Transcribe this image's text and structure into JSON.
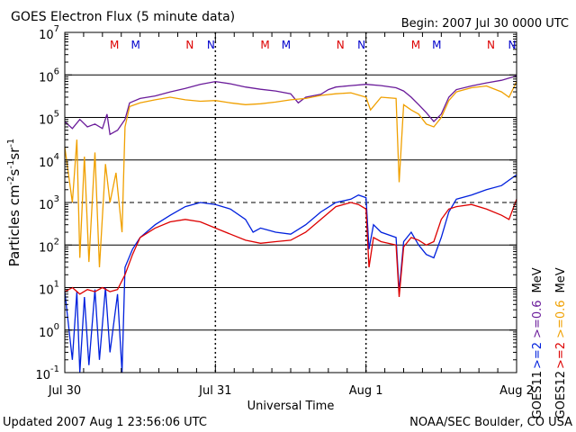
{
  "header": {
    "title": "GOES Electron Flux (5 minute data)",
    "begin": "Begin: 2007 Jul 30 0000 UTC"
  },
  "footer": {
    "updated": "Updated 2007 Aug  1 23:56:06 UTC",
    "credit": "NOAA/SEC Boulder, CO USA"
  },
  "axes": {
    "xlabel": "Universal Time",
    "ylabel_base": "Particles cm",
    "ylabel_sup1": "-2",
    "ylabel_mid1": "s",
    "ylabel_sup2": "-1",
    "ylabel_mid2": "sr",
    "ylabel_sup3": "-1"
  },
  "legend": {
    "unit": "MeV",
    "goes11_label": "GOES11",
    "goes12_label": "GOES12",
    "g11_high": ">=0.6",
    "g11_low": ">=2",
    "g12_high": ">=0.6",
    "g12_low": ">=2"
  },
  "markers": {
    "items": [
      {
        "day": 0.33,
        "label": "M",
        "color": "#dd0000"
      },
      {
        "day": 0.47,
        "label": "M",
        "color": "#0000cc"
      },
      {
        "day": 0.83,
        "label": "N",
        "color": "#dd0000"
      },
      {
        "day": 0.97,
        "label": "N",
        "color": "#0000cc"
      },
      {
        "day": 1.33,
        "label": "M",
        "color": "#dd0000"
      },
      {
        "day": 1.47,
        "label": "M",
        "color": "#0000cc"
      },
      {
        "day": 1.83,
        "label": "N",
        "color": "#dd0000"
      },
      {
        "day": 1.97,
        "label": "N",
        "color": "#0000cc"
      },
      {
        "day": 2.33,
        "label": "M",
        "color": "#dd0000"
      },
      {
        "day": 2.47,
        "label": "M",
        "color": "#0000cc"
      },
      {
        "day": 2.83,
        "label": "N",
        "color": "#dd0000"
      },
      {
        "day": 2.97,
        "label": "N",
        "color": "#0000cc"
      }
    ]
  },
  "chart_data": {
    "type": "line",
    "title": "GOES Electron Flux (5 minute data)",
    "xlabel": "Universal Time",
    "ylabel": "Particles cm-2 s-1 sr-1",
    "yscale": "log",
    "ylim": [
      0.1,
      10000000
    ],
    "xlim_days": [
      0,
      3
    ],
    "x_tick_labels": [
      "Jul 30",
      "Jul 31",
      "Aug 1",
      "Aug 2"
    ],
    "y_tick_labels": [
      {
        "base": "10",
        "exp": "-1"
      },
      {
        "base": "10",
        "exp": "0"
      },
      {
        "base": "10",
        "exp": "1"
      },
      {
        "base": "10",
        "exp": "2"
      },
      {
        "base": "10",
        "exp": "3"
      },
      {
        "base": "10",
        "exp": "4"
      },
      {
        "base": "10",
        "exp": "5"
      },
      {
        "base": "10",
        "exp": "6"
      },
      {
        "base": "10",
        "exp": "7"
      }
    ],
    "grid": "horizontal at each decade, dashed at 1000",
    "series": [
      {
        "name": "GOES11 >=0.6 MeV",
        "color": "#6a1b9a",
        "points": [
          [
            0,
            80000
          ],
          [
            0.05,
            55000
          ],
          [
            0.1,
            90000
          ],
          [
            0.15,
            60000
          ],
          [
            0.2,
            70000
          ],
          [
            0.25,
            55000
          ],
          [
            0.28,
            120000
          ],
          [
            0.3,
            40000
          ],
          [
            0.35,
            50000
          ],
          [
            0.4,
            90000
          ],
          [
            0.43,
            220000
          ],
          [
            0.5,
            280000
          ],
          [
            0.6,
            320000
          ],
          [
            0.7,
            400000
          ],
          [
            0.8,
            480000
          ],
          [
            0.9,
            600000
          ],
          [
            1.0,
            700000
          ],
          [
            1.1,
            620000
          ],
          [
            1.2,
            520000
          ],
          [
            1.3,
            460000
          ],
          [
            1.4,
            420000
          ],
          [
            1.5,
            360000
          ],
          [
            1.55,
            220000
          ],
          [
            1.6,
            300000
          ],
          [
            1.7,
            350000
          ],
          [
            1.75,
            450000
          ],
          [
            1.8,
            520000
          ],
          [
            1.9,
            560000
          ],
          [
            2.0,
            600000
          ],
          [
            2.1,
            560000
          ],
          [
            2.2,
            500000
          ],
          [
            2.25,
            420000
          ],
          [
            2.3,
            300000
          ],
          [
            2.35,
            200000
          ],
          [
            2.4,
            130000
          ],
          [
            2.45,
            80000
          ],
          [
            2.5,
            120000
          ],
          [
            2.55,
            300000
          ],
          [
            2.6,
            450000
          ],
          [
            2.7,
            550000
          ],
          [
            2.8,
            650000
          ],
          [
            2.9,
            750000
          ],
          [
            3.0,
            950000
          ]
        ]
      },
      {
        "name": "GOES12 >=0.6 MeV",
        "color": "#f0a000",
        "points": [
          [
            0,
            20000
          ],
          [
            0.05,
            1000
          ],
          [
            0.08,
            30000
          ],
          [
            0.1,
            50
          ],
          [
            0.13,
            12000
          ],
          [
            0.16,
            40
          ],
          [
            0.2,
            15000
          ],
          [
            0.23,
            30
          ],
          [
            0.27,
            8000
          ],
          [
            0.3,
            1000
          ],
          [
            0.34,
            5000
          ],
          [
            0.38,
            200
          ],
          [
            0.4,
            60000
          ],
          [
            0.43,
            180000
          ],
          [
            0.5,
            220000
          ],
          [
            0.6,
            260000
          ],
          [
            0.7,
            300000
          ],
          [
            0.8,
            260000
          ],
          [
            0.9,
            240000
          ],
          [
            1.0,
            250000
          ],
          [
            1.1,
            220000
          ],
          [
            1.2,
            200000
          ],
          [
            1.3,
            210000
          ],
          [
            1.4,
            230000
          ],
          [
            1.5,
            260000
          ],
          [
            1.6,
            280000
          ],
          [
            1.7,
            330000
          ],
          [
            1.8,
            360000
          ],
          [
            1.9,
            380000
          ],
          [
            2.0,
            300000
          ],
          [
            2.03,
            150000
          ],
          [
            2.1,
            300000
          ],
          [
            2.2,
            280000
          ],
          [
            2.22,
            3000
          ],
          [
            2.25,
            200000
          ],
          [
            2.3,
            150000
          ],
          [
            2.35,
            120000
          ],
          [
            2.4,
            70000
          ],
          [
            2.45,
            60000
          ],
          [
            2.5,
            100000
          ],
          [
            2.55,
            250000
          ],
          [
            2.6,
            400000
          ],
          [
            2.7,
            500000
          ],
          [
            2.8,
            550000
          ],
          [
            2.9,
            400000
          ],
          [
            2.95,
            300000
          ],
          [
            3.0,
            700000
          ]
        ]
      },
      {
        "name": "GOES11 >=2 MeV",
        "color": "#0020dd",
        "points": [
          [
            0,
            8
          ],
          [
            0.05,
            0.2
          ],
          [
            0.08,
            8
          ],
          [
            0.1,
            0.1
          ],
          [
            0.13,
            6
          ],
          [
            0.16,
            0.15
          ],
          [
            0.2,
            9
          ],
          [
            0.23,
            0.2
          ],
          [
            0.27,
            10
          ],
          [
            0.3,
            0.3
          ],
          [
            0.35,
            7
          ],
          [
            0.38,
            0.1
          ],
          [
            0.4,
            30
          ],
          [
            0.45,
            80
          ],
          [
            0.5,
            150
          ],
          [
            0.6,
            300
          ],
          [
            0.7,
            500
          ],
          [
            0.8,
            800
          ],
          [
            0.9,
            1000
          ],
          [
            1.0,
            900
          ],
          [
            1.1,
            700
          ],
          [
            1.2,
            400
          ],
          [
            1.25,
            200
          ],
          [
            1.3,
            250
          ],
          [
            1.4,
            200
          ],
          [
            1.5,
            180
          ],
          [
            1.6,
            300
          ],
          [
            1.7,
            600
          ],
          [
            1.8,
            1000
          ],
          [
            1.9,
            1200
          ],
          [
            1.95,
            1500
          ],
          [
            2.0,
            1300
          ],
          [
            2.02,
            80
          ],
          [
            2.05,
            300
          ],
          [
            2.1,
            200
          ],
          [
            2.2,
            150
          ],
          [
            2.22,
            8
          ],
          [
            2.25,
            120
          ],
          [
            2.3,
            200
          ],
          [
            2.35,
            100
          ],
          [
            2.4,
            60
          ],
          [
            2.45,
            50
          ],
          [
            2.5,
            150
          ],
          [
            2.55,
            600
          ],
          [
            2.6,
            1200
          ],
          [
            2.7,
            1500
          ],
          [
            2.8,
            2000
          ],
          [
            2.9,
            2500
          ],
          [
            3.0,
            4500
          ]
        ]
      },
      {
        "name": "GOES12 >=2 MeV",
        "color": "#dd0000",
        "points": [
          [
            0,
            8
          ],
          [
            0.05,
            10
          ],
          [
            0.1,
            7
          ],
          [
            0.15,
            9
          ],
          [
            0.2,
            8
          ],
          [
            0.25,
            10
          ],
          [
            0.3,
            8
          ],
          [
            0.35,
            9
          ],
          [
            0.4,
            20
          ],
          [
            0.45,
            60
          ],
          [
            0.5,
            150
          ],
          [
            0.6,
            250
          ],
          [
            0.7,
            350
          ],
          [
            0.8,
            400
          ],
          [
            0.9,
            350
          ],
          [
            1.0,
            250
          ],
          [
            1.1,
            180
          ],
          [
            1.2,
            130
          ],
          [
            1.3,
            110
          ],
          [
            1.4,
            120
          ],
          [
            1.5,
            130
          ],
          [
            1.6,
            200
          ],
          [
            1.7,
            400
          ],
          [
            1.8,
            800
          ],
          [
            1.9,
            1000
          ],
          [
            1.95,
            900
          ],
          [
            2.0,
            700
          ],
          [
            2.02,
            30
          ],
          [
            2.05,
            150
          ],
          [
            2.1,
            120
          ],
          [
            2.2,
            100
          ],
          [
            2.22,
            6
          ],
          [
            2.25,
            90
          ],
          [
            2.3,
            150
          ],
          [
            2.35,
            130
          ],
          [
            2.4,
            100
          ],
          [
            2.45,
            120
          ],
          [
            2.5,
            400
          ],
          [
            2.55,
            700
          ],
          [
            2.6,
            800
          ],
          [
            2.7,
            900
          ],
          [
            2.8,
            700
          ],
          [
            2.9,
            500
          ],
          [
            2.95,
            400
          ],
          [
            3.0,
            1200
          ]
        ]
      }
    ]
  }
}
